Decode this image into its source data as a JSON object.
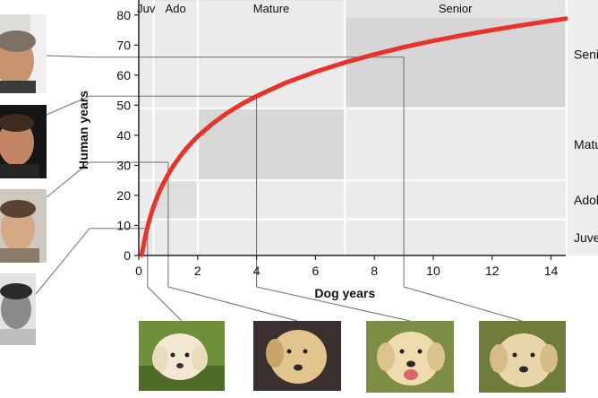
{
  "chart_data": {
    "type": "line",
    "title": "",
    "xlabel": "Dog years",
    "ylabel": "Human years",
    "xlim": [
      0,
      14.5
    ],
    "ylim": [
      0,
      85
    ],
    "x_ticks": [
      0,
      2,
      4,
      6,
      8,
      10,
      12,
      14
    ],
    "y_ticks": [
      0,
      10,
      20,
      30,
      40,
      50,
      60,
      70,
      80
    ],
    "series": [
      {
        "color": "#e8322a",
        "x": [
          0.1,
          0.2,
          0.3,
          0.4,
          0.5,
          0.6,
          0.7,
          0.8,
          0.9,
          1.0,
          1.2,
          1.4,
          1.6,
          1.8,
          2.0,
          2.5,
          3.0,
          3.5,
          4.0,
          5.0,
          6.0,
          7.0,
          8.0,
          9.0,
          10.0,
          11.0,
          12.0,
          13.0,
          14.0,
          14.5
        ],
        "y": [
          0.2,
          5.4,
          9.6,
          13.2,
          16.2,
          18.8,
          21.2,
          23.3,
          25.2,
          27.0,
          30.2,
          32.9,
          35.4,
          37.6,
          39.6,
          43.8,
          47.4,
          50.4,
          53.0,
          57.5,
          61.1,
          64.2,
          66.9,
          69.3,
          71.4,
          73.3,
          75.0,
          76.6,
          78.1,
          78.8
        ]
      }
    ],
    "stages": [
      {
        "label": "Juv",
        "x_range": [
          0,
          0.5
        ],
        "y_range": [
          0,
          12
        ],
        "color": "#e6e6e6"
      },
      {
        "label": "Ado",
        "x_range": [
          0.5,
          2
        ],
        "y_range": [
          12,
          25
        ],
        "color": "#dedede"
      },
      {
        "label": "Mature",
        "x_range": [
          2,
          7
        ],
        "y_range": [
          25,
          49
        ],
        "color": "#d8d8d8"
      },
      {
        "label": "Senior",
        "x_range": [
          7,
          14.5
        ],
        "y_range": [
          49,
          85
        ],
        "color": "#d6d6d6"
      }
    ],
    "right_labels": [
      "Senior",
      "Mature",
      "Adolescent",
      "Juvenile"
    ],
    "annotations": [
      {
        "x": 0.3,
        "y": 9
      },
      {
        "x": 1,
        "y": 31
      },
      {
        "x": 4,
        "y": 53
      },
      {
        "x": 9,
        "y": 66
      }
    ],
    "grid": true,
    "legend": "none"
  },
  "people_photos": [
    "senior-man-photo",
    "mature-man-photo",
    "adolescent-photo",
    "juvenile-photo"
  ],
  "dog_photos": [
    "puppy-photo",
    "young-dog-photo",
    "adult-dog-photo",
    "senior-dog-photo"
  ]
}
